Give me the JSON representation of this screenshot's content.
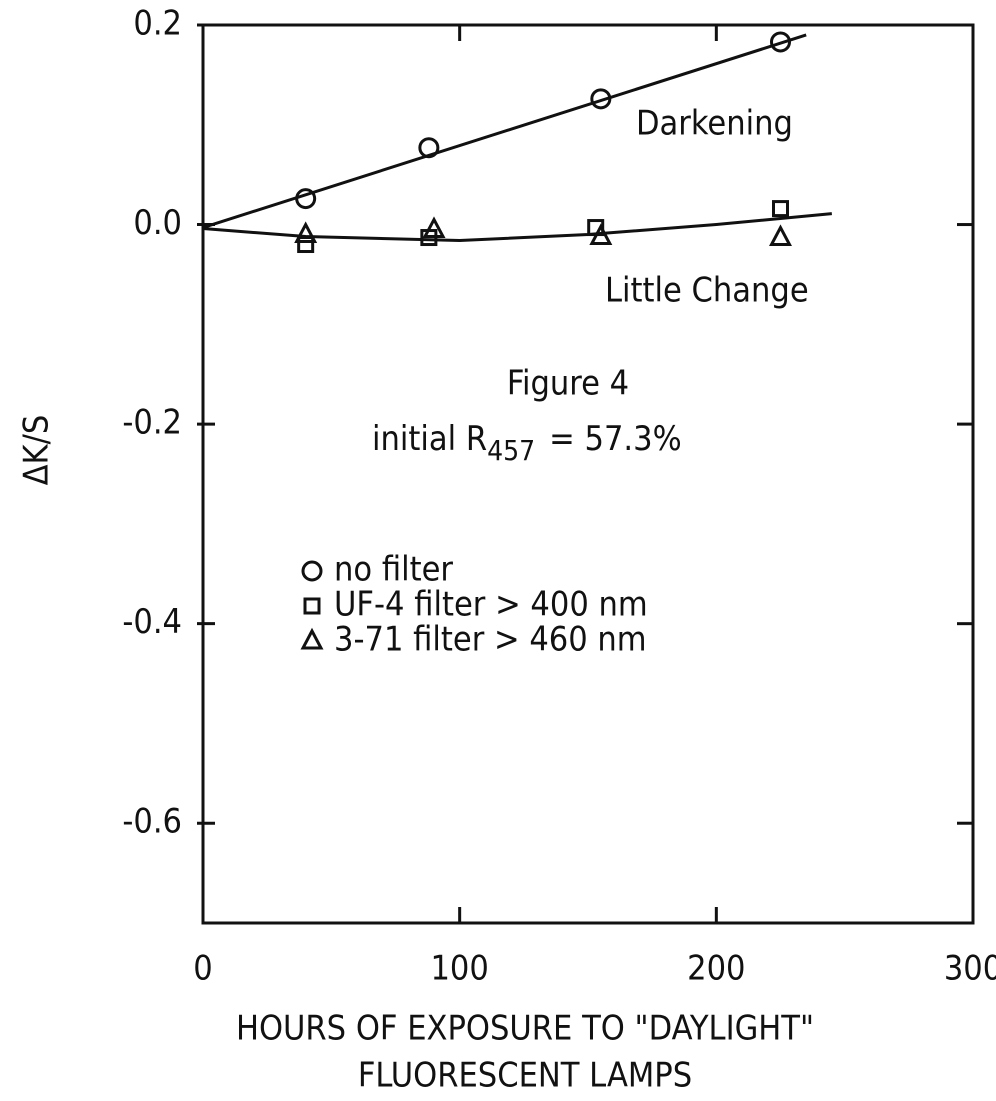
{
  "chart_data": {
    "type": "scatter",
    "xlabel": [
      "HOURS OF EXPOSURE TO \"DAYLIGHT\"",
      "FLUORESCENT LAMPS"
    ],
    "ylabel": "ΔK/S",
    "xlim": [
      0,
      300
    ],
    "xticks": [
      0,
      100,
      200,
      300
    ],
    "ylim": [
      -0.7,
      0.2
    ],
    "yticks": [
      0.2,
      {
        "value": 0,
        "label": "0.0"
      },
      -0.2,
      -0.4,
      -0.6
    ],
    "figure_label": "Figure 4",
    "note": {
      "text": "initial R",
      "subscript": "457",
      "suffix": "= 57.3%"
    },
    "series": [
      {
        "name": "no filter",
        "marker": "circle",
        "color": "#111111",
        "x": [
          40,
          88,
          155,
          225
        ],
        "values": [
          0.026,
          0.077,
          0.126,
          0.183
        ]
      },
      {
        "name": "UF-4 filter > 400 nm",
        "marker": "square",
        "color": "#111111",
        "x": [
          40,
          88,
          153,
          225
        ],
        "values": [
          -0.02,
          -0.013,
          -0.003,
          0.016
        ]
      },
      {
        "name": "3-71 filter > 460 nm",
        "marker": "triangle",
        "color": "#111111",
        "x": [
          40,
          90,
          155,
          225
        ],
        "values": [
          -0.01,
          -0.005,
          -0.012,
          -0.013
        ]
      }
    ],
    "fits": [
      {
        "label": "Darkening",
        "x": [
          0,
          235
        ],
        "values": [
          -0.003,
          0.19
        ]
      },
      {
        "label": "Little Change",
        "x": [
          0,
          40,
          100,
          150,
          200,
          245
        ],
        "values": [
          -0.004,
          -0.012,
          -0.016,
          -0.01,
          0.0,
          0.011
        ]
      }
    ]
  }
}
